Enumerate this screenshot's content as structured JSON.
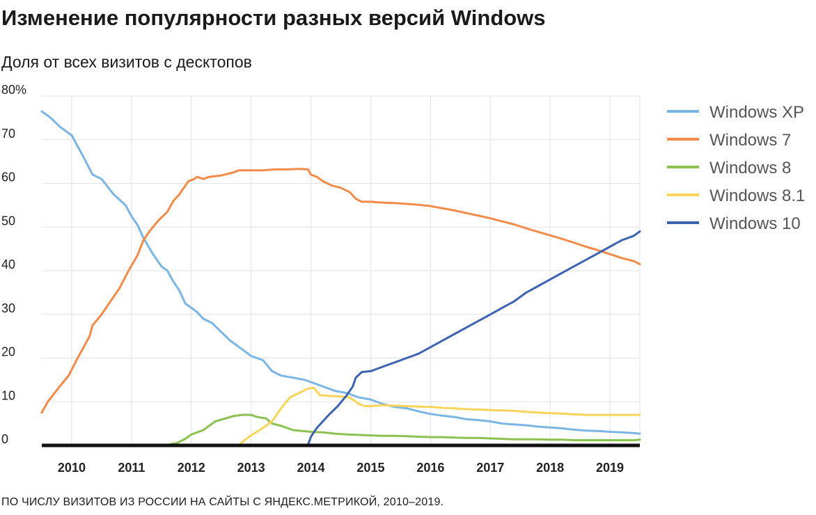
{
  "header": {
    "title": "Изменение популярности разных версий Windows",
    "subtitle": "Доля от всех визитов с десктопов"
  },
  "footer": {
    "note": "ПО ЧИСЛУ ВИЗИТОВ ИЗ РОССИИ НА САЙТЫ С ЯНДЕКС.МЕТРИКОЙ, 2010–2019."
  },
  "chart_data": {
    "type": "line",
    "title": "Изменение популярности разных версий Windows",
    "ylabel": "Доля от всех визитов с десктопов",
    "xlabel": "",
    "xlim": [
      2009.5,
      2019.5
    ],
    "ylim": [
      0,
      80
    ],
    "y_ticks": [
      {
        "value": 0,
        "label": "0"
      },
      {
        "value": 10,
        "label": "10"
      },
      {
        "value": 20,
        "label": "20"
      },
      {
        "value": 30,
        "label": "30"
      },
      {
        "value": 40,
        "label": "40"
      },
      {
        "value": 50,
        "label": "50"
      },
      {
        "value": 60,
        "label": "60"
      },
      {
        "value": 70,
        "label": "70"
      },
      {
        "value": 80,
        "label": "80%"
      }
    ],
    "x_ticks": [
      "2010",
      "2011",
      "2012",
      "2013",
      "2014",
      "2015",
      "2016",
      "2017",
      "2018",
      "2019"
    ],
    "grid": true,
    "legend_position": "right",
    "series": [
      {
        "name": "Windows XP",
        "color": "#7ab5e3",
        "points": [
          [
            2009.5,
            76.5
          ],
          [
            2009.65,
            75
          ],
          [
            2009.8,
            73
          ],
          [
            2010.0,
            71
          ],
          [
            2010.2,
            66
          ],
          [
            2010.35,
            62
          ],
          [
            2010.5,
            61
          ],
          [
            2010.7,
            57.5
          ],
          [
            2010.9,
            55
          ],
          [
            2011.0,
            52.5
          ],
          [
            2011.1,
            50.5
          ],
          [
            2011.2,
            47.5
          ],
          [
            2011.35,
            44
          ],
          [
            2011.5,
            41
          ],
          [
            2011.6,
            40
          ],
          [
            2011.7,
            37.5
          ],
          [
            2011.8,
            35.5
          ],
          [
            2011.9,
            32.5
          ],
          [
            2012.0,
            31.5
          ],
          [
            2012.1,
            30.5
          ],
          [
            2012.2,
            29
          ],
          [
            2012.35,
            28
          ],
          [
            2012.5,
            26
          ],
          [
            2012.65,
            24
          ],
          [
            2012.75,
            23
          ],
          [
            2012.9,
            21.5
          ],
          [
            2013.0,
            20.5
          ],
          [
            2013.2,
            19.5
          ],
          [
            2013.35,
            17
          ],
          [
            2013.5,
            16
          ],
          [
            2013.7,
            15.5
          ],
          [
            2013.9,
            15
          ],
          [
            2014.1,
            14
          ],
          [
            2014.3,
            13
          ],
          [
            2014.4,
            12.5
          ],
          [
            2014.6,
            12
          ],
          [
            2014.8,
            11
          ],
          [
            2015.0,
            10.5
          ],
          [
            2015.2,
            9.5
          ],
          [
            2015.4,
            8.8
          ],
          [
            2015.6,
            8.5
          ],
          [
            2015.8,
            7.8
          ],
          [
            2016.0,
            7.2
          ],
          [
            2016.2,
            6.8
          ],
          [
            2016.4,
            6.5
          ],
          [
            2016.6,
            6
          ],
          [
            2016.8,
            5.8
          ],
          [
            2017.0,
            5.5
          ],
          [
            2017.2,
            5
          ],
          [
            2017.4,
            4.8
          ],
          [
            2017.6,
            4.6
          ],
          [
            2017.8,
            4.3
          ],
          [
            2018.0,
            4.1
          ],
          [
            2018.2,
            3.9
          ],
          [
            2018.4,
            3.6
          ],
          [
            2018.6,
            3.4
          ],
          [
            2018.8,
            3.3
          ],
          [
            2019.0,
            3.1
          ],
          [
            2019.2,
            3.0
          ],
          [
            2019.4,
            2.8
          ],
          [
            2019.5,
            2.7
          ]
        ]
      },
      {
        "name": "Windows 7",
        "color": "#f28a4a",
        "points": [
          [
            2009.5,
            7.5
          ],
          [
            2009.6,
            10
          ],
          [
            2009.8,
            13.5
          ],
          [
            2009.95,
            16
          ],
          [
            2010.1,
            20
          ],
          [
            2010.3,
            25
          ],
          [
            2010.35,
            27.5
          ],
          [
            2010.5,
            30
          ],
          [
            2010.65,
            33
          ],
          [
            2010.8,
            36
          ],
          [
            2010.95,
            40
          ],
          [
            2011.1,
            43.5
          ],
          [
            2011.2,
            47
          ],
          [
            2011.3,
            49
          ],
          [
            2011.45,
            51.5
          ],
          [
            2011.6,
            53.5
          ],
          [
            2011.7,
            56
          ],
          [
            2011.8,
            57.5
          ],
          [
            2011.95,
            60.5
          ],
          [
            2012.05,
            61
          ],
          [
            2012.1,
            61.5
          ],
          [
            2012.2,
            61
          ],
          [
            2012.3,
            61.5
          ],
          [
            2012.5,
            61.8
          ],
          [
            2012.7,
            62.5
          ],
          [
            2012.8,
            63
          ],
          [
            2013.0,
            63
          ],
          [
            2013.2,
            63
          ],
          [
            2013.4,
            63.2
          ],
          [
            2013.6,
            63.2
          ],
          [
            2013.8,
            63.3
          ],
          [
            2013.95,
            63.2
          ],
          [
            2014.0,
            62
          ],
          [
            2014.1,
            61.5
          ],
          [
            2014.2,
            60.5
          ],
          [
            2014.35,
            59.5
          ],
          [
            2014.5,
            59
          ],
          [
            2014.65,
            58
          ],
          [
            2014.75,
            56.5
          ],
          [
            2014.85,
            55.8
          ],
          [
            2015.0,
            55.8
          ],
          [
            2015.2,
            55.6
          ],
          [
            2015.4,
            55.5
          ],
          [
            2015.6,
            55.3
          ],
          [
            2015.8,
            55.1
          ],
          [
            2016.0,
            54.8
          ],
          [
            2016.2,
            54.3
          ],
          [
            2016.4,
            53.8
          ],
          [
            2016.6,
            53.2
          ],
          [
            2016.8,
            52.6
          ],
          [
            2017.0,
            52.0
          ],
          [
            2017.2,
            51.3
          ],
          [
            2017.4,
            50.6
          ],
          [
            2017.6,
            49.7
          ],
          [
            2017.8,
            48.9
          ],
          [
            2018.0,
            48.1
          ],
          [
            2018.2,
            47.3
          ],
          [
            2018.4,
            46.4
          ],
          [
            2018.6,
            45.5
          ],
          [
            2018.8,
            44.7
          ],
          [
            2019.0,
            43.8
          ],
          [
            2019.2,
            42.9
          ],
          [
            2019.4,
            42.2
          ],
          [
            2019.5,
            41.5
          ]
        ]
      },
      {
        "name": "Windows 8",
        "color": "#8cc152",
        "points": [
          [
            2011.65,
            0.3
          ],
          [
            2011.75,
            0.5
          ],
          [
            2011.9,
            1.5
          ],
          [
            2012.0,
            2.5
          ],
          [
            2012.2,
            3.5
          ],
          [
            2012.3,
            4.5
          ],
          [
            2012.4,
            5.5
          ],
          [
            2012.6,
            6.3
          ],
          [
            2012.7,
            6.7
          ],
          [
            2012.85,
            7
          ],
          [
            2013.0,
            7
          ],
          [
            2013.1,
            6.5
          ],
          [
            2013.25,
            6.2
          ],
          [
            2013.35,
            5
          ],
          [
            2013.5,
            4.5
          ],
          [
            2013.7,
            3.5
          ],
          [
            2013.85,
            3.3
          ],
          [
            2014.0,
            3.1
          ],
          [
            2014.2,
            3.0
          ],
          [
            2014.4,
            2.7
          ],
          [
            2014.6,
            2.5
          ],
          [
            2014.8,
            2.4
          ],
          [
            2015.0,
            2.3
          ],
          [
            2015.2,
            2.2
          ],
          [
            2015.4,
            2.2
          ],
          [
            2015.6,
            2.1
          ],
          [
            2015.8,
            2.0
          ],
          [
            2016.0,
            1.9
          ],
          [
            2016.2,
            1.9
          ],
          [
            2016.4,
            1.8
          ],
          [
            2016.6,
            1.7
          ],
          [
            2016.8,
            1.7
          ],
          [
            2017.0,
            1.6
          ],
          [
            2017.2,
            1.5
          ],
          [
            2017.4,
            1.4
          ],
          [
            2017.6,
            1.4
          ],
          [
            2017.8,
            1.4
          ],
          [
            2018.0,
            1.3
          ],
          [
            2018.2,
            1.3
          ],
          [
            2018.4,
            1.2
          ],
          [
            2018.6,
            1.2
          ],
          [
            2018.8,
            1.2
          ],
          [
            2019.0,
            1.2
          ],
          [
            2019.2,
            1.2
          ],
          [
            2019.4,
            1.2
          ],
          [
            2019.5,
            1.3
          ]
        ]
      },
      {
        "name": "Windows 8.1",
        "color": "#fad45a",
        "points": [
          [
            2012.8,
            0.1
          ],
          [
            2012.9,
            1.3
          ],
          [
            2013.0,
            2.3
          ],
          [
            2013.2,
            4
          ],
          [
            2013.35,
            5.5
          ],
          [
            2013.5,
            8.5
          ],
          [
            2013.65,
            11
          ],
          [
            2013.8,
            12
          ],
          [
            2013.95,
            13
          ],
          [
            2014.05,
            13.2
          ],
          [
            2014.15,
            11.5
          ],
          [
            2014.35,
            11.3
          ],
          [
            2014.5,
            11.2
          ],
          [
            2014.65,
            11
          ],
          [
            2014.8,
            9.5
          ],
          [
            2014.9,
            9.0
          ],
          [
            2015.0,
            9.0
          ],
          [
            2015.2,
            9.2
          ],
          [
            2015.4,
            9.1
          ],
          [
            2015.6,
            9.0
          ],
          [
            2015.8,
            8.9
          ],
          [
            2016.0,
            8.8
          ],
          [
            2016.2,
            8.6
          ],
          [
            2016.4,
            8.5
          ],
          [
            2016.6,
            8.3
          ],
          [
            2016.8,
            8.2
          ],
          [
            2017.0,
            8.1
          ],
          [
            2017.2,
            8.0
          ],
          [
            2017.4,
            7.9
          ],
          [
            2017.6,
            7.7
          ],
          [
            2017.8,
            7.5
          ],
          [
            2018.0,
            7.4
          ],
          [
            2018.2,
            7.3
          ],
          [
            2018.4,
            7.1
          ],
          [
            2018.6,
            7.0
          ],
          [
            2018.8,
            7.0
          ],
          [
            2019.0,
            7.0
          ],
          [
            2019.2,
            7.0
          ],
          [
            2019.4,
            7.0
          ],
          [
            2019.5,
            7.0
          ]
        ]
      },
      {
        "name": "Windows 10",
        "color": "#3d63b0",
        "points": [
          [
            2013.95,
            0.1
          ],
          [
            2014.0,
            2
          ],
          [
            2014.1,
            4
          ],
          [
            2014.3,
            7
          ],
          [
            2014.45,
            9
          ],
          [
            2014.6,
            11.5
          ],
          [
            2014.7,
            13.5
          ],
          [
            2014.75,
            15.5
          ],
          [
            2014.85,
            16.8
          ],
          [
            2015.0,
            17
          ],
          [
            2015.2,
            18
          ],
          [
            2015.4,
            19
          ],
          [
            2015.6,
            20
          ],
          [
            2015.8,
            21
          ],
          [
            2016.0,
            22.5
          ],
          [
            2016.2,
            24
          ],
          [
            2016.4,
            25.5
          ],
          [
            2016.6,
            27
          ],
          [
            2016.8,
            28.5
          ],
          [
            2017.0,
            30
          ],
          [
            2017.2,
            31.5
          ],
          [
            2017.4,
            33
          ],
          [
            2017.6,
            35
          ],
          [
            2017.8,
            36.5
          ],
          [
            2018.0,
            38
          ],
          [
            2018.2,
            39.5
          ],
          [
            2018.4,
            41
          ],
          [
            2018.6,
            42.5
          ],
          [
            2018.8,
            44
          ],
          [
            2019.0,
            45.5
          ],
          [
            2019.2,
            47
          ],
          [
            2019.4,
            48
          ],
          [
            2019.5,
            49
          ]
        ]
      }
    ]
  }
}
